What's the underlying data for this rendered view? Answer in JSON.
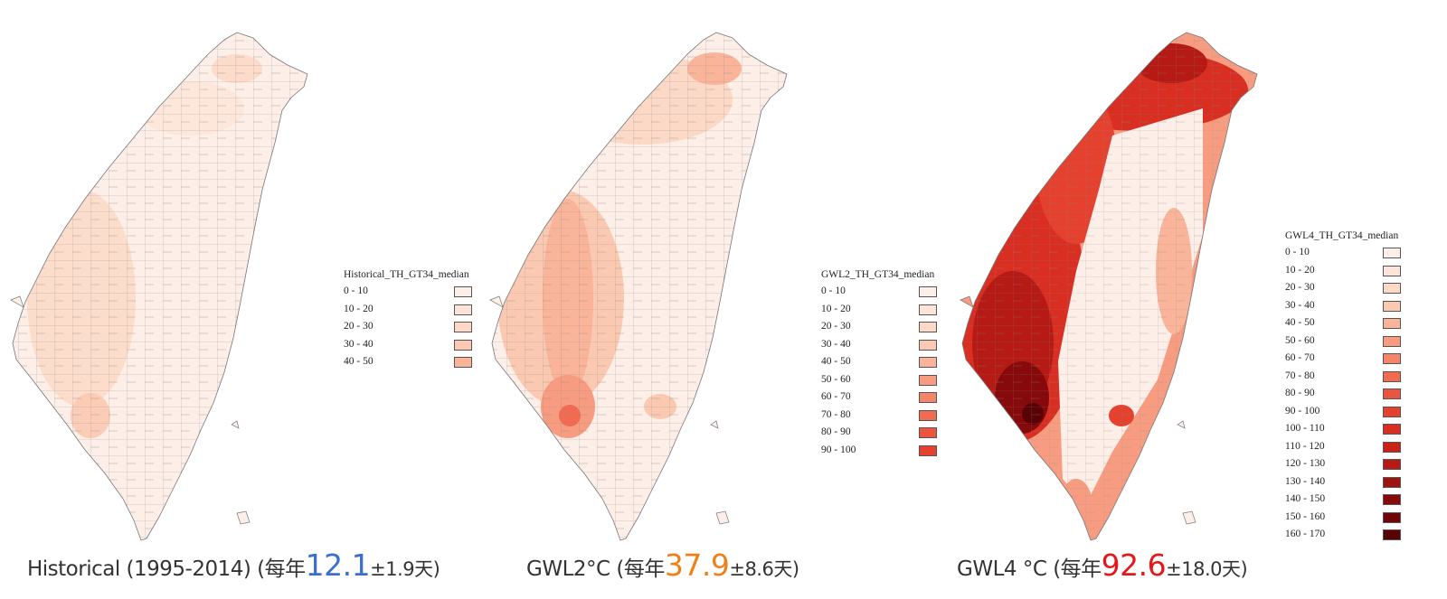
{
  "colors": {
    "scale": [
      "#fdeee7",
      "#fde4d8",
      "#fcd8c6",
      "#fbc9b1",
      "#f9b49a",
      "#f79c80",
      "#f4856a",
      "#f06b52",
      "#eb543f",
      "#e4412f",
      "#d92f23",
      "#c92219",
      "#b51a14",
      "#9e1310",
      "#860a0b",
      "#6e0508",
      "#5a0307"
    ],
    "historical_value": "#3a6fd1",
    "gwl2_value": "#f07f1a",
    "gwl4_value": "#e6171c"
  },
  "panels": [
    {
      "legend_title": "Historical_TH_GT34_median",
      "legend_items": [
        "0 - 10",
        "10 - 20",
        "20 - 30",
        "30 - 40",
        "40 - 50"
      ],
      "caption_prefix": "Historical (1995-2014) (每年",
      "caption_value": "12.1",
      "caption_suffix": "±1.9天)"
    },
    {
      "legend_title": "GWL2_TH_GT34_median",
      "legend_items": [
        "0 - 10",
        "10 - 20",
        "20 - 30",
        "30 - 40",
        "40 - 50",
        "50 - 60",
        "60 - 70",
        "70 - 80",
        "80 - 90",
        "90 - 100"
      ],
      "caption_prefix": "GWL2°C (每年",
      "caption_value": "37.9",
      "caption_suffix": "±8.6天)"
    },
    {
      "legend_title": "GWL4_TH_GT34_median",
      "legend_items": [
        "0 - 10",
        "10 - 20",
        "20 - 30",
        "30 - 40",
        "40 - 50",
        "50 - 60",
        "60 - 70",
        "70 - 80",
        "80 - 90",
        "90 - 100",
        "100 - 110",
        "110 - 120",
        "120 - 130",
        "130 - 140",
        "140 - 150",
        "150 - 160",
        "160 - 170"
      ],
      "caption_prefix": "GWL4 °C (每年",
      "caption_value": "92.6",
      "caption_suffix": "±18.0天)"
    }
  ]
}
